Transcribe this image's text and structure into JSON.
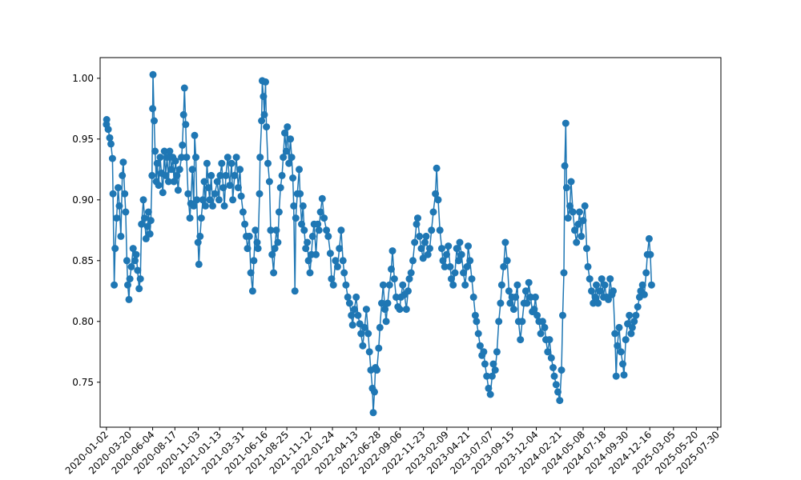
{
  "chart_data": {
    "type": "line",
    "marker": "circle",
    "title": "",
    "xlabel": "",
    "ylabel": "",
    "line_color": "#1f77b4",
    "grid": false,
    "legend": "none",
    "xlim": [
      "2019-12-12",
      "2025-08-10"
    ],
    "ylim": [
      0.713,
      1.017
    ],
    "x_ticks": [
      "2020-01-02",
      "2020-03-20",
      "2020-06-04",
      "2020-08-17",
      "2020-11-03",
      "2021-01-13",
      "2021-03-31",
      "2021-06-16",
      "2021-08-25",
      "2021-11-12",
      "2022-01-24",
      "2022-04-13",
      "2022-06-28",
      "2022-09-06",
      "2022-11-23",
      "2023-02-09",
      "2023-04-21",
      "2023-07-07",
      "2023-09-15",
      "2023-12-04",
      "2024-02-21",
      "2024-05-08",
      "2024-07-18",
      "2024-09-30",
      "2024-12-16",
      "2025-03-05",
      "2025-05-20",
      "2025-07-30"
    ],
    "y_ticks": [
      "0.75",
      "0.80",
      "0.85",
      "0.90",
      "0.95",
      "1.00"
    ],
    "series_points": [
      [
        "2020-01-02",
        0.962
      ],
      [
        "2020-01-03",
        0.966
      ],
      [
        "2020-01-08",
        0.958
      ],
      [
        "2020-01-13",
        0.951
      ],
      [
        "2020-01-17",
        0.946
      ],
      [
        "2020-01-22",
        0.934
      ],
      [
        "2020-01-24",
        0.905
      ],
      [
        "2020-01-28",
        0.83
      ],
      [
        "2020-01-31",
        0.86
      ],
      [
        "2020-02-05",
        0.885
      ],
      [
        "2020-02-10",
        0.91
      ],
      [
        "2020-02-14",
        0.895
      ],
      [
        "2020-02-19",
        0.87
      ],
      [
        "2020-02-24",
        0.92
      ],
      [
        "2020-02-27",
        0.931
      ],
      [
        "2020-03-03",
        0.905
      ],
      [
        "2020-03-06",
        0.89
      ],
      [
        "2020-03-10",
        0.85
      ],
      [
        "2020-03-13",
        0.83
      ],
      [
        "2020-03-17",
        0.818
      ],
      [
        "2020-03-20",
        0.835
      ],
      [
        "2020-03-25",
        0.845
      ],
      [
        "2020-03-31",
        0.86
      ],
      [
        "2020-04-06",
        0.85
      ],
      [
        "2020-04-10",
        0.855
      ],
      [
        "2020-04-15",
        0.842
      ],
      [
        "2020-04-20",
        0.827
      ],
      [
        "2020-04-24",
        0.835
      ],
      [
        "2020-04-28",
        0.88
      ],
      [
        "2020-05-04",
        0.9
      ],
      [
        "2020-05-08",
        0.885
      ],
      [
        "2020-05-13",
        0.868
      ],
      [
        "2020-05-18",
        0.878
      ],
      [
        "2020-05-21",
        0.89
      ],
      [
        "2020-05-26",
        0.872
      ],
      [
        "2020-05-29",
        0.883
      ],
      [
        "2020-06-02",
        0.92
      ],
      [
        "2020-06-04",
        0.975
      ],
      [
        "2020-06-05",
        1.003
      ],
      [
        "2020-06-09",
        0.965
      ],
      [
        "2020-06-12",
        0.94
      ],
      [
        "2020-06-16",
        0.915
      ],
      [
        "2020-06-19",
        0.93
      ],
      [
        "2020-06-24",
        0.912
      ],
      [
        "2020-06-29",
        0.935
      ],
      [
        "2020-07-03",
        0.922
      ],
      [
        "2020-07-08",
        0.906
      ],
      [
        "2020-07-13",
        0.94
      ],
      [
        "2020-07-17",
        0.92
      ],
      [
        "2020-07-22",
        0.935
      ],
      [
        "2020-07-27",
        0.915
      ],
      [
        "2020-07-31",
        0.94
      ],
      [
        "2020-08-05",
        0.925
      ],
      [
        "2020-08-10",
        0.935
      ],
      [
        "2020-08-14",
        0.915
      ],
      [
        "2020-08-19",
        0.932
      ],
      [
        "2020-08-24",
        0.92
      ],
      [
        "2020-08-28",
        0.908
      ],
      [
        "2020-09-02",
        0.925
      ],
      [
        "2020-09-08",
        0.935
      ],
      [
        "2020-09-11",
        0.945
      ],
      [
        "2020-09-15",
        0.97
      ],
      [
        "2020-09-18",
        0.992
      ],
      [
        "2020-09-22",
        0.962
      ],
      [
        "2020-09-25",
        0.935
      ],
      [
        "2020-09-30",
        0.905
      ],
      [
        "2020-10-06",
        0.885
      ],
      [
        "2020-10-09",
        0.897
      ],
      [
        "2020-10-14",
        0.925
      ],
      [
        "2020-10-19",
        0.895
      ],
      [
        "2020-10-22",
        0.953
      ],
      [
        "2020-10-26",
        0.935
      ],
      [
        "2020-10-29",
        0.9
      ],
      [
        "2020-11-02",
        0.865
      ],
      [
        "2020-11-05",
        0.847
      ],
      [
        "2020-11-09",
        0.87
      ],
      [
        "2020-11-13",
        0.885
      ],
      [
        "2020-11-18",
        0.9
      ],
      [
        "2020-11-23",
        0.915
      ],
      [
        "2020-11-27",
        0.895
      ],
      [
        "2020-12-02",
        0.93
      ],
      [
        "2020-12-07",
        0.91
      ],
      [
        "2020-12-11",
        0.9
      ],
      [
        "2020-12-16",
        0.92
      ],
      [
        "2020-12-21",
        0.895
      ],
      [
        "2020-12-28",
        0.905
      ],
      [
        "2021-01-05",
        0.915
      ],
      [
        "2021-01-11",
        0.9
      ],
      [
        "2021-01-15",
        0.92
      ],
      [
        "2021-01-20",
        0.93
      ],
      [
        "2021-01-25",
        0.91
      ],
      [
        "2021-01-29",
        0.895
      ],
      [
        "2021-02-03",
        0.92
      ],
      [
        "2021-02-09",
        0.935
      ],
      [
        "2021-02-16",
        0.912
      ],
      [
        "2021-02-22",
        0.93
      ],
      [
        "2021-02-26",
        0.9
      ],
      [
        "2021-03-04",
        0.92
      ],
      [
        "2021-03-10",
        0.935
      ],
      [
        "2021-03-16",
        0.91
      ],
      [
        "2021-03-22",
        0.925
      ],
      [
        "2021-03-26",
        0.903
      ],
      [
        "2021-04-01",
        0.89
      ],
      [
        "2021-04-07",
        0.88
      ],
      [
        "2021-04-12",
        0.87
      ],
      [
        "2021-04-16",
        0.86
      ],
      [
        "2021-04-22",
        0.87
      ],
      [
        "2021-04-27",
        0.84
      ],
      [
        "2021-05-03",
        0.825
      ],
      [
        "2021-05-07",
        0.85
      ],
      [
        "2021-05-12",
        0.875
      ],
      [
        "2021-05-18",
        0.865
      ],
      [
        "2021-05-21",
        0.86
      ],
      [
        "2021-05-26",
        0.905
      ],
      [
        "2021-05-28",
        0.935
      ],
      [
        "2021-06-02",
        0.965
      ],
      [
        "2021-06-04",
        0.998
      ],
      [
        "2021-06-08",
        0.985
      ],
      [
        "2021-06-11",
        0.97
      ],
      [
        "2021-06-15",
        0.997
      ],
      [
        "2021-06-18",
        0.96
      ],
      [
        "2021-06-23",
        0.93
      ],
      [
        "2021-06-28",
        0.915
      ],
      [
        "2021-07-02",
        0.875
      ],
      [
        "2021-07-07",
        0.855
      ],
      [
        "2021-07-12",
        0.84
      ],
      [
        "2021-07-16",
        0.86
      ],
      [
        "2021-07-21",
        0.875
      ],
      [
        "2021-07-26",
        0.865
      ],
      [
        "2021-07-30",
        0.89
      ],
      [
        "2021-08-04",
        0.91
      ],
      [
        "2021-08-09",
        0.92
      ],
      [
        "2021-08-13",
        0.935
      ],
      [
        "2021-08-18",
        0.955
      ],
      [
        "2021-08-23",
        0.94
      ],
      [
        "2021-08-27",
        0.96
      ],
      [
        "2021-09-01",
        0.93
      ],
      [
        "2021-09-06",
        0.95
      ],
      [
        "2021-09-10",
        0.935
      ],
      [
        "2021-09-14",
        0.918
      ],
      [
        "2021-09-17",
        0.895
      ],
      [
        "2021-09-21",
        0.825
      ],
      [
        "2021-09-24",
        0.885
      ],
      [
        "2021-09-29",
        0.905
      ],
      [
        "2021-10-05",
        0.925
      ],
      [
        "2021-10-08",
        0.905
      ],
      [
        "2021-10-13",
        0.88
      ],
      [
        "2021-10-18",
        0.895
      ],
      [
        "2021-10-22",
        0.875
      ],
      [
        "2021-10-27",
        0.86
      ],
      [
        "2021-11-01",
        0.865
      ],
      [
        "2021-11-05",
        0.85
      ],
      [
        "2021-11-10",
        0.84
      ],
      [
        "2021-11-15",
        0.855
      ],
      [
        "2021-11-19",
        0.87
      ],
      [
        "2021-11-24",
        0.88
      ],
      [
        "2021-11-30",
        0.855
      ],
      [
        "2021-12-06",
        0.88
      ],
      [
        "2021-12-10",
        0.875
      ],
      [
        "2021-12-15",
        0.89
      ],
      [
        "2021-12-21",
        0.901
      ],
      [
        "2021-12-27",
        0.885
      ],
      [
        "2022-01-04",
        0.875
      ],
      [
        "2022-01-10",
        0.87
      ],
      [
        "2022-01-17",
        0.856
      ],
      [
        "2022-01-21",
        0.835
      ],
      [
        "2022-01-27",
        0.83
      ],
      [
        "2022-02-03",
        0.85
      ],
      [
        "2022-02-10",
        0.845
      ],
      [
        "2022-02-16",
        0.86
      ],
      [
        "2022-02-22",
        0.875
      ],
      [
        "2022-02-28",
        0.85
      ],
      [
        "2022-03-04",
        0.84
      ],
      [
        "2022-03-10",
        0.83
      ],
      [
        "2022-03-16",
        0.82
      ],
      [
        "2022-03-22",
        0.815
      ],
      [
        "2022-03-28",
        0.805
      ],
      [
        "2022-04-01",
        0.797
      ],
      [
        "2022-04-07",
        0.81
      ],
      [
        "2022-04-13",
        0.82
      ],
      [
        "2022-04-19",
        0.805
      ],
      [
        "2022-04-25",
        0.798
      ],
      [
        "2022-04-29",
        0.79
      ],
      [
        "2022-05-05",
        0.78
      ],
      [
        "2022-05-11",
        0.795
      ],
      [
        "2022-05-17",
        0.81
      ],
      [
        "2022-05-23",
        0.79
      ],
      [
        "2022-05-27",
        0.775
      ],
      [
        "2022-06-01",
        0.76
      ],
      [
        "2022-06-06",
        0.745
      ],
      [
        "2022-06-09",
        0.725
      ],
      [
        "2022-06-13",
        0.742
      ],
      [
        "2022-06-16",
        0.762
      ],
      [
        "2022-06-21",
        0.76
      ],
      [
        "2022-06-27",
        0.778
      ],
      [
        "2022-07-01",
        0.795
      ],
      [
        "2022-07-07",
        0.815
      ],
      [
        "2022-07-12",
        0.83
      ],
      [
        "2022-07-18",
        0.81
      ],
      [
        "2022-07-22",
        0.8
      ],
      [
        "2022-07-27",
        0.815
      ],
      [
        "2022-08-02",
        0.83
      ],
      [
        "2022-08-08",
        0.843
      ],
      [
        "2022-08-12",
        0.858
      ],
      [
        "2022-08-18",
        0.835
      ],
      [
        "2022-08-24",
        0.82
      ],
      [
        "2022-08-30",
        0.812
      ],
      [
        "2022-09-05",
        0.81
      ],
      [
        "2022-09-09",
        0.82
      ],
      [
        "2022-09-15",
        0.83
      ],
      [
        "2022-09-21",
        0.822
      ],
      [
        "2022-09-27",
        0.81
      ],
      [
        "2022-10-03",
        0.825
      ],
      [
        "2022-10-07",
        0.835
      ],
      [
        "2022-10-13",
        0.84
      ],
      [
        "2022-10-19",
        0.85
      ],
      [
        "2022-10-25",
        0.865
      ],
      [
        "2022-10-31",
        0.88
      ],
      [
        "2022-11-04",
        0.885
      ],
      [
        "2022-11-10",
        0.87
      ],
      [
        "2022-11-16",
        0.86
      ],
      [
        "2022-11-22",
        0.852
      ],
      [
        "2022-11-28",
        0.865
      ],
      [
        "2022-12-02",
        0.87
      ],
      [
        "2022-12-08",
        0.855
      ],
      [
        "2022-12-14",
        0.86
      ],
      [
        "2022-12-20",
        0.875
      ],
      [
        "2022-12-26",
        0.89
      ],
      [
        "2023-01-02",
        0.905
      ],
      [
        "2023-01-06",
        0.926
      ],
      [
        "2023-01-11",
        0.9
      ],
      [
        "2023-01-17",
        0.875
      ],
      [
        "2023-01-23",
        0.86
      ],
      [
        "2023-01-27",
        0.85
      ],
      [
        "2023-02-02",
        0.845
      ],
      [
        "2023-02-08",
        0.855
      ],
      [
        "2023-02-14",
        0.862
      ],
      [
        "2023-02-20",
        0.845
      ],
      [
        "2023-02-24",
        0.835
      ],
      [
        "2023-03-02",
        0.83
      ],
      [
        "2023-03-08",
        0.84
      ],
      [
        "2023-03-14",
        0.86
      ],
      [
        "2023-03-20",
        0.85
      ],
      [
        "2023-03-24",
        0.865
      ],
      [
        "2023-03-30",
        0.855
      ],
      [
        "2023-04-05",
        0.84
      ],
      [
        "2023-04-11",
        0.83
      ],
      [
        "2023-04-17",
        0.845
      ],
      [
        "2023-04-21",
        0.862
      ],
      [
        "2023-04-27",
        0.85
      ],
      [
        "2023-05-03",
        0.835
      ],
      [
        "2023-05-09",
        0.82
      ],
      [
        "2023-05-15",
        0.805
      ],
      [
        "2023-05-19",
        0.8
      ],
      [
        "2023-05-25",
        0.79
      ],
      [
        "2023-05-31",
        0.78
      ],
      [
        "2023-06-06",
        0.772
      ],
      [
        "2023-06-12",
        0.775
      ],
      [
        "2023-06-16",
        0.765
      ],
      [
        "2023-06-22",
        0.755
      ],
      [
        "2023-06-28",
        0.745
      ],
      [
        "2023-07-04",
        0.74
      ],
      [
        "2023-07-10",
        0.755
      ],
      [
        "2023-07-14",
        0.765
      ],
      [
        "2023-07-20",
        0.76
      ],
      [
        "2023-07-26",
        0.775
      ],
      [
        "2023-08-01",
        0.8
      ],
      [
        "2023-08-07",
        0.815
      ],
      [
        "2023-08-11",
        0.83
      ],
      [
        "2023-08-17",
        0.845
      ],
      [
        "2023-08-23",
        0.865
      ],
      [
        "2023-08-29",
        0.85
      ],
      [
        "2023-09-04",
        0.825
      ],
      [
        "2023-09-08",
        0.815
      ],
      [
        "2023-09-14",
        0.82
      ],
      [
        "2023-09-20",
        0.81
      ],
      [
        "2023-09-26",
        0.82
      ],
      [
        "2023-10-02",
        0.83
      ],
      [
        "2023-10-06",
        0.8
      ],
      [
        "2023-10-12",
        0.785
      ],
      [
        "2023-10-18",
        0.8
      ],
      [
        "2023-10-24",
        0.815
      ],
      [
        "2023-10-30",
        0.825
      ],
      [
        "2023-11-03",
        0.815
      ],
      [
        "2023-11-09",
        0.832
      ],
      [
        "2023-11-15",
        0.82
      ],
      [
        "2023-11-21",
        0.808
      ],
      [
        "2023-11-27",
        0.81
      ],
      [
        "2023-12-01",
        0.82
      ],
      [
        "2023-12-07",
        0.805
      ],
      [
        "2023-12-13",
        0.8
      ],
      [
        "2023-12-19",
        0.79
      ],
      [
        "2023-12-25",
        0.8
      ],
      [
        "2024-01-01",
        0.795
      ],
      [
        "2024-01-05",
        0.785
      ],
      [
        "2024-01-11",
        0.775
      ],
      [
        "2024-01-17",
        0.785
      ],
      [
        "2024-01-23",
        0.77
      ],
      [
        "2024-01-29",
        0.762
      ],
      [
        "2024-02-02",
        0.755
      ],
      [
        "2024-02-08",
        0.748
      ],
      [
        "2024-02-14",
        0.742
      ],
      [
        "2024-02-20",
        0.735
      ],
      [
        "2024-02-26",
        0.76
      ],
      [
        "2024-03-01",
        0.805
      ],
      [
        "2024-03-05",
        0.84
      ],
      [
        "2024-03-08",
        0.928
      ],
      [
        "2024-03-11",
        0.963
      ],
      [
        "2024-03-14",
        0.91
      ],
      [
        "2024-03-19",
        0.885
      ],
      [
        "2024-03-25",
        0.895
      ],
      [
        "2024-03-29",
        0.915
      ],
      [
        "2024-04-04",
        0.89
      ],
      [
        "2024-04-10",
        0.875
      ],
      [
        "2024-04-16",
        0.865
      ],
      [
        "2024-04-22",
        0.88
      ],
      [
        "2024-04-26",
        0.89
      ],
      [
        "2024-05-02",
        0.87
      ],
      [
        "2024-05-08",
        0.883
      ],
      [
        "2024-05-14",
        0.895
      ],
      [
        "2024-05-20",
        0.86
      ],
      [
        "2024-05-24",
        0.845
      ],
      [
        "2024-05-30",
        0.835
      ],
      [
        "2024-06-05",
        0.825
      ],
      [
        "2024-06-11",
        0.815
      ],
      [
        "2024-06-17",
        0.82
      ],
      [
        "2024-06-21",
        0.83
      ],
      [
        "2024-06-27",
        0.815
      ],
      [
        "2024-07-03",
        0.825
      ],
      [
        "2024-07-09",
        0.835
      ],
      [
        "2024-07-15",
        0.82
      ],
      [
        "2024-07-19",
        0.83
      ],
      [
        "2024-07-25",
        0.82
      ],
      [
        "2024-07-31",
        0.818
      ],
      [
        "2024-08-06",
        0.835
      ],
      [
        "2024-08-12",
        0.822
      ],
      [
        "2024-08-16",
        0.825
      ],
      [
        "2024-08-22",
        0.79
      ],
      [
        "2024-08-26",
        0.755
      ],
      [
        "2024-08-30",
        0.78
      ],
      [
        "2024-09-05",
        0.795
      ],
      [
        "2024-09-11",
        0.775
      ],
      [
        "2024-09-17",
        0.765
      ],
      [
        "2024-09-21",
        0.756
      ],
      [
        "2024-09-27",
        0.785
      ],
      [
        "2024-10-03",
        0.798
      ],
      [
        "2024-10-09",
        0.805
      ],
      [
        "2024-10-15",
        0.79
      ],
      [
        "2024-10-19",
        0.795
      ],
      [
        "2024-10-25",
        0.8
      ],
      [
        "2024-10-31",
        0.805
      ],
      [
        "2024-11-06",
        0.812
      ],
      [
        "2024-11-12",
        0.82
      ],
      [
        "2024-11-16",
        0.825
      ],
      [
        "2024-11-22",
        0.83
      ],
      [
        "2024-11-28",
        0.822
      ],
      [
        "2024-12-04",
        0.84
      ],
      [
        "2024-12-08",
        0.855
      ],
      [
        "2024-12-14",
        0.868
      ],
      [
        "2024-12-18",
        0.855
      ],
      [
        "2024-12-22",
        0.83
      ]
    ]
  }
}
